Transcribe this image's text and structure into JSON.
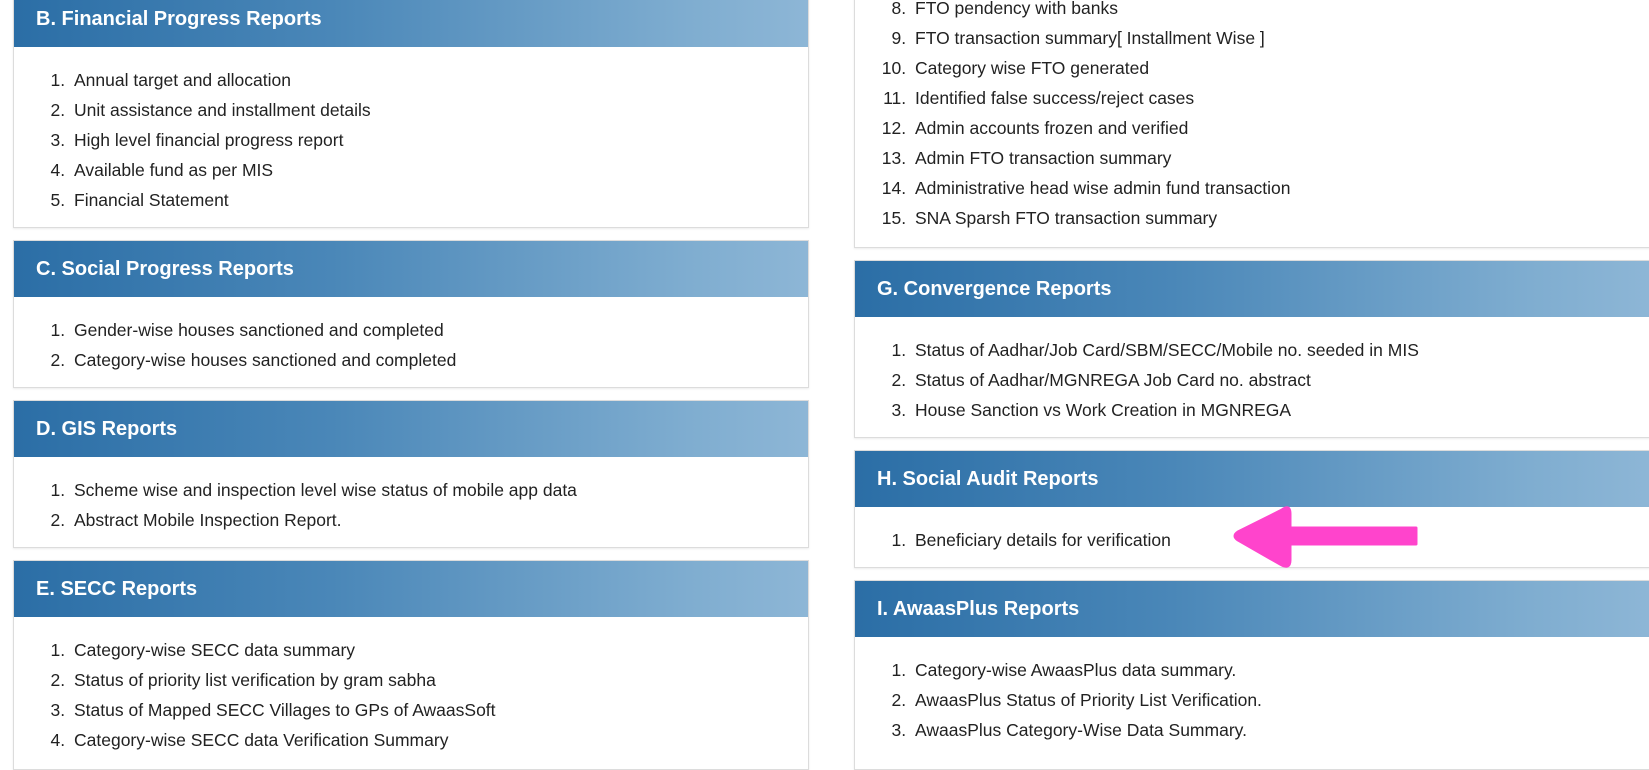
{
  "sections": {
    "B": {
      "title": "B. Financial Progress Reports",
      "items": [
        "Annual target and allocation",
        "Unit assistance and installment details",
        "High level financial progress report",
        "Available fund as per MIS",
        "Financial Statement"
      ]
    },
    "C": {
      "title": "C. Social Progress Reports",
      "items": [
        "Gender-wise houses sanctioned and completed",
        "Category-wise houses sanctioned and completed"
      ]
    },
    "D": {
      "title": "D. GIS Reports",
      "items": [
        "Scheme wise and inspection level wise status of mobile app data",
        "Abstract Mobile Inspection Report."
      ]
    },
    "E": {
      "title": "E. SECC Reports",
      "items": [
        "Category-wise SECC data summary",
        "Status of priority list verification by gram sabha",
        "Status of Mapped SECC Villages to GPs of AwaasSoft",
        "Category-wise SECC data Verification Summary"
      ]
    },
    "F": {
      "start": 8,
      "items": [
        "FTO pendency with banks",
        "FTO transaction summary[ Installment Wise ]",
        "Category wise FTO generated",
        "Identified false success/reject cases",
        "Admin accounts frozen and verified",
        "Admin FTO transaction summary",
        "Administrative head wise admin fund transaction",
        "SNA Sparsh FTO transaction summary"
      ]
    },
    "G": {
      "title": "G. Convergence Reports",
      "items": [
        "Status of Aadhar/Job Card/SBM/SECC/Mobile no. seeded in MIS",
        "Status of Aadhar/MGNREGA Job Card no. abstract",
        "House Sanction vs Work Creation in MGNREGA"
      ]
    },
    "H": {
      "title": "H. Social Audit Reports",
      "items": [
        "Beneficiary details for verification"
      ]
    },
    "I": {
      "title": "I. AwaasPlus Reports",
      "items": [
        "Category-wise AwaasPlus data summary.",
        "AwaasPlus Status of Priority List Verification.",
        "AwaasPlus Category-Wise Data Summary."
      ]
    }
  },
  "colors": {
    "header_start": "#2b6ea6",
    "header_end": "#8db6d6",
    "arrow": "#ff44cc"
  },
  "annotation": {
    "icon": "arrow-left-icon"
  }
}
